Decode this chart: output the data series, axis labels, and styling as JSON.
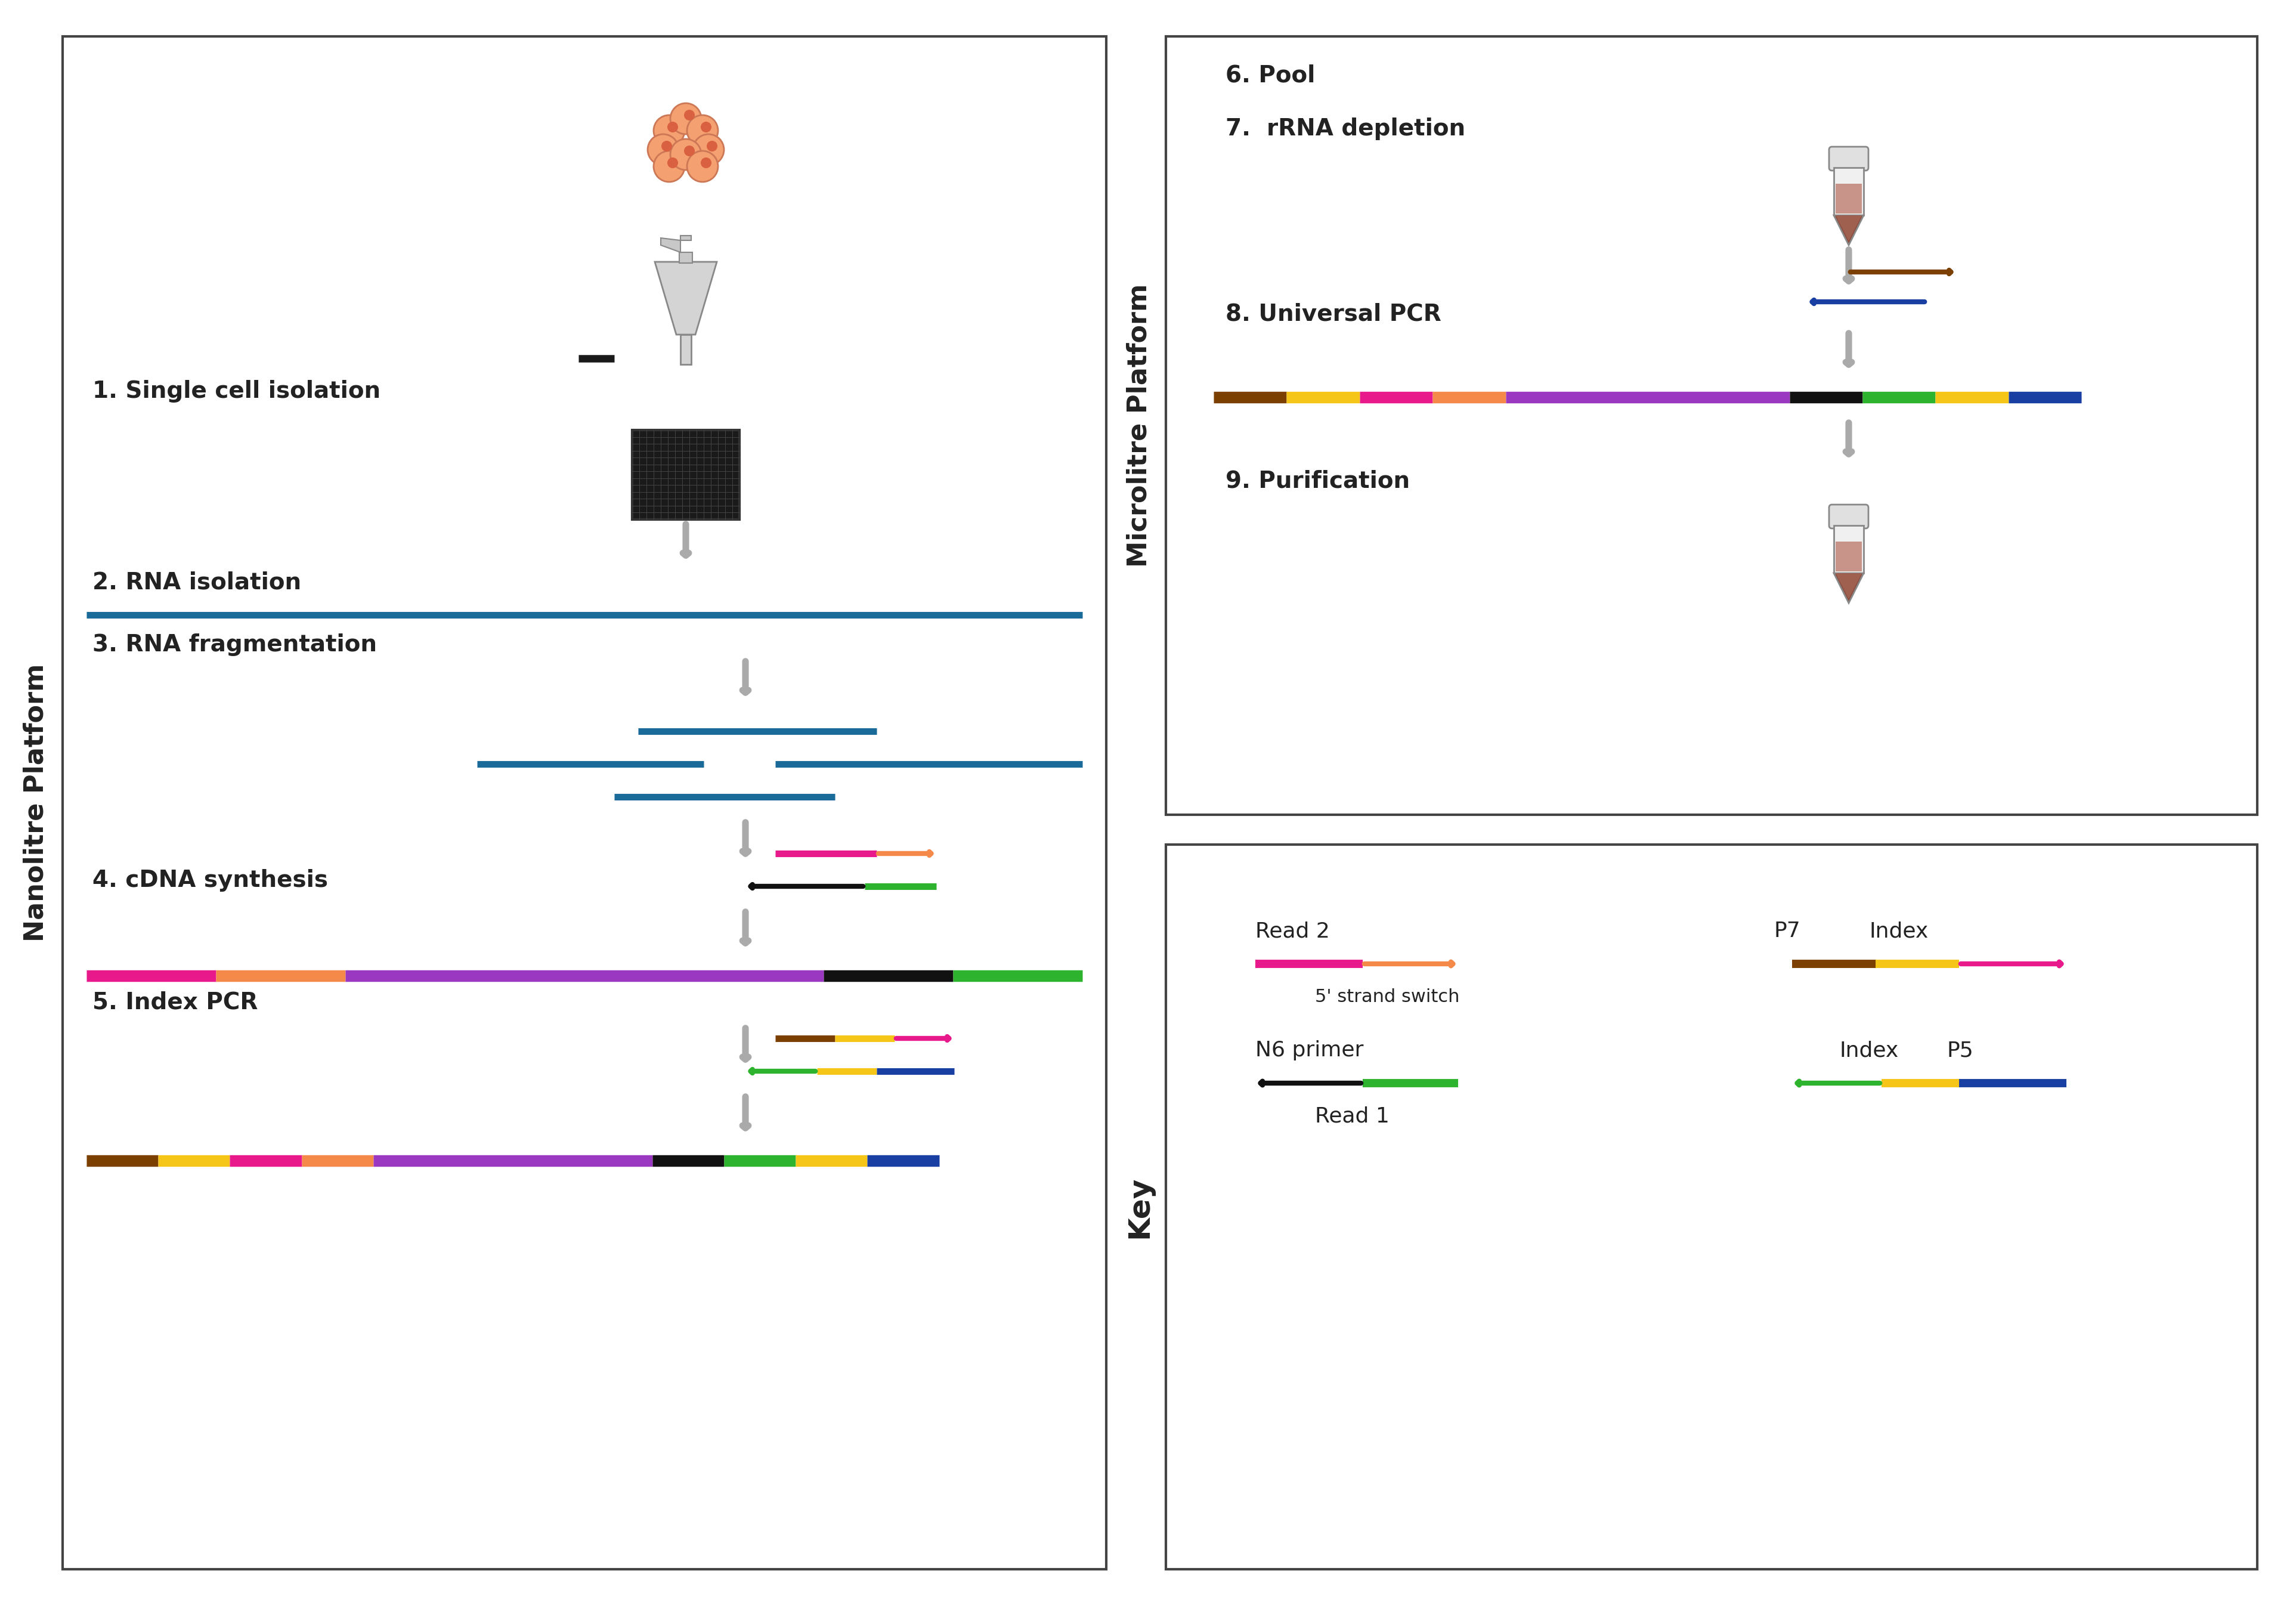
{
  "bg_color": "#ffffff",
  "panel_border_color": "#444444",
  "label_color": "#222222",
  "label_fontsize": 28,
  "side_label_fontsize": 30,
  "arrow_gray": "#aaaaaa",
  "blue_line_color": "#1a6b9a",
  "pink_color": "#e8198b",
  "orange_color": "#f4894a",
  "purple_color": "#9b38c2",
  "black_color": "#111111",
  "green_color": "#2db32d",
  "yellow_color": "#f5c518",
  "brown_color": "#7b3f00",
  "dark_blue_color": "#1a3fa3",
  "cell_color": "#f4a070",
  "cell_edge": "#cc7755",
  "tube_gray": "#c8c8c8",
  "micro_brown": "#8b4c3c",
  "segs_full": [
    [
      "#7b3f00",
      0.072
    ],
    [
      "#f5c518",
      0.072
    ],
    [
      "#e8198b",
      0.072
    ],
    [
      "#f4894a",
      0.072
    ],
    [
      "#9b38c2",
      0.28
    ],
    [
      "#111111",
      0.072
    ],
    [
      "#2db32d",
      0.072
    ],
    [
      "#f5c518",
      0.072
    ],
    [
      "#1a3fa3",
      0.072
    ]
  ],
  "segs_cdna": [
    [
      "#e8198b",
      0.13
    ],
    [
      "#f4894a",
      0.13
    ],
    [
      "#9b38c2",
      0.48
    ],
    [
      "#111111",
      0.13
    ],
    [
      "#2db32d",
      0.13
    ]
  ]
}
